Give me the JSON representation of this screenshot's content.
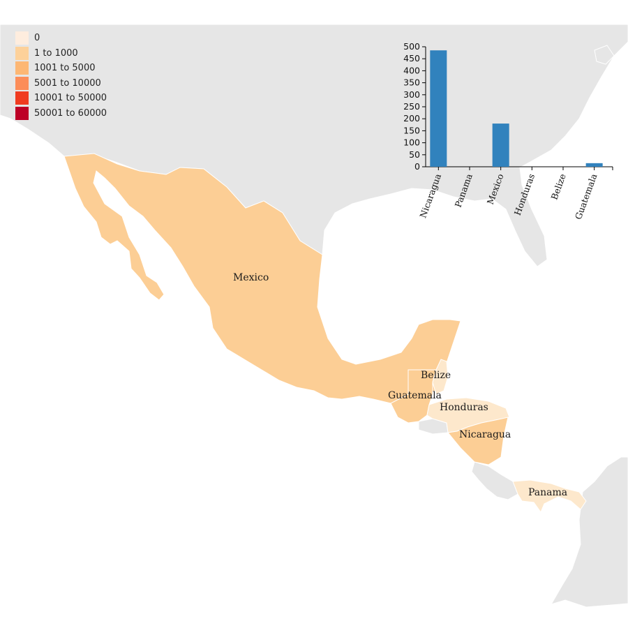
{
  "colors": {
    "land": "#e6e6e6",
    "water": "#ffffff",
    "border": "#ffffff",
    "bar": "#3182bd",
    "fill_zero": "#fde8cc",
    "fill_1_1000": "#fcce95"
  },
  "legend": {
    "items": [
      {
        "label": "0",
        "color": "#feedde"
      },
      {
        "label": "1 to 1000",
        "color": "#fdd19a"
      },
      {
        "label": "1001 to 5000",
        "color": "#fdb774"
      },
      {
        "label": "5001 to 10000",
        "color": "#fc8d59"
      },
      {
        "label": "10001 to 50000",
        "color": "#f03b20"
      },
      {
        "label": "50001 to 60000",
        "color": "#bd0026"
      }
    ]
  },
  "map": {
    "countries": [
      {
        "name": "Mexico",
        "bin": "1 to 1000"
      },
      {
        "name": "Belize",
        "bin": "0"
      },
      {
        "name": "Guatemala",
        "bin": "1 to 1000"
      },
      {
        "name": "Honduras",
        "bin": "0"
      },
      {
        "name": "Nicaragua",
        "bin": "1 to 1000"
      },
      {
        "name": "Panama",
        "bin": "0"
      }
    ]
  },
  "chart_data": {
    "type": "bar",
    "categories": [
      "Nicaragua",
      "Panama",
      "Mexico",
      "Honduras",
      "Belize",
      "Guatemala"
    ],
    "values": [
      485,
      0,
      180,
      0,
      0,
      15
    ],
    "ylim": [
      0,
      500
    ],
    "yticks": [
      0,
      50,
      100,
      150,
      200,
      250,
      300,
      350,
      400,
      450,
      500
    ],
    "grid": false
  }
}
